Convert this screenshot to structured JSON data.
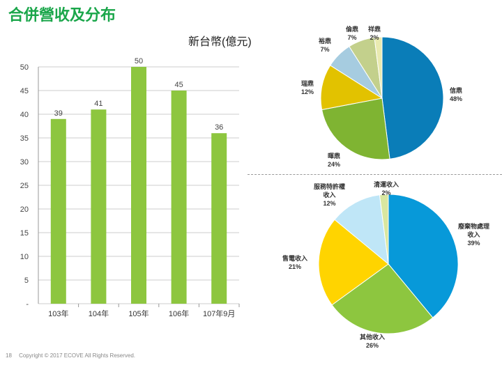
{
  "page_title": "合併營收及分布",
  "footer": {
    "page": "18",
    "copyright": "Copyright © 2017 ECOVE All Rights Reserved."
  },
  "chart_data": [
    {
      "type": "bar",
      "title": "",
      "unit_label": "新台幣(億元)",
      "categories": [
        "103年",
        "104年",
        "105年",
        "106年",
        "107年9月"
      ],
      "values": [
        39,
        41,
        50,
        45,
        36
      ],
      "data_labels": [
        "39",
        "41",
        "50",
        "45",
        "36"
      ],
      "y_ticks": [
        "-",
        "5",
        "10",
        "15",
        "20",
        "25",
        "30",
        "35",
        "40",
        "45",
        "50"
      ],
      "ylim": [
        0,
        50
      ],
      "grid": true,
      "colors": {
        "bar": "#8dc63f",
        "grid": "#cccccc",
        "axis": "#999999"
      }
    },
    {
      "type": "pie",
      "slices": [
        {
          "label": "信鼎",
          "pct": "48%",
          "value": 48,
          "color": "#0a7db8"
        },
        {
          "label": "暉鼎",
          "pct": "24%",
          "value": 24,
          "color": "#7fb432"
        },
        {
          "label": "瑞鼎",
          "pct": "12%",
          "value": 12,
          "color": "#e2c200"
        },
        {
          "label": "裕鼎",
          "pct": "7%",
          "value": 7,
          "color": "#a6cce0"
        },
        {
          "label": "倫鼎",
          "pct": "7%",
          "value": 7,
          "color": "#c3d08c"
        },
        {
          "label": "祥鼎",
          "pct": "2%",
          "value": 2,
          "color": "#e9eab0"
        }
      ]
    },
    {
      "type": "pie",
      "slices": [
        {
          "label": "廢棄物處理收入",
          "label_lines": [
            "廢棄物處理",
            "收入"
          ],
          "pct": "39%",
          "value": 39,
          "color": "#0799d9"
        },
        {
          "label": "其他收入",
          "label_lines": [
            "其他收入"
          ],
          "pct": "26%",
          "value": 26,
          "color": "#8dc63f"
        },
        {
          "label": "售電收入",
          "label_lines": [
            "售電收入"
          ],
          "pct": "21%",
          "value": 21,
          "color": "#ffd400"
        },
        {
          "label": "服務特許權收入",
          "label_lines": [
            "服務特許權",
            "收入"
          ],
          "pct": "12%",
          "value": 12,
          "color": "#bfe6f7"
        },
        {
          "label": "清運收入",
          "label_lines": [
            "清運收入"
          ],
          "pct": "2%",
          "value": 2,
          "color": "#d9e7a0"
        }
      ]
    }
  ]
}
